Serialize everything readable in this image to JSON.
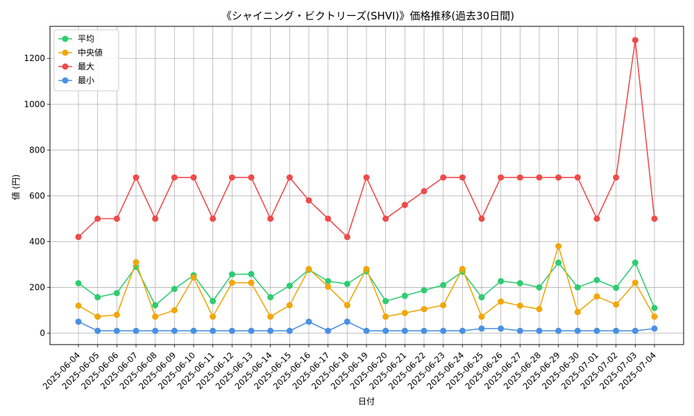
{
  "chart_data": {
    "type": "line",
    "title": "《シャイニング・ビクトリーズ(SHVI)》価格推移(過去30日間)",
    "xlabel": "日付",
    "ylabel": "値 (円)",
    "ylim": [
      -50,
      1340
    ],
    "yticks": [
      0,
      200,
      400,
      600,
      800,
      1000,
      1200
    ],
    "grid": true,
    "legend_position": "top-left",
    "categories": [
      "2025-06-04",
      "2025-06-05",
      "2025-06-06",
      "2025-06-07",
      "2025-06-08",
      "2025-06-09",
      "2025-06-10",
      "2025-06-11",
      "2025-06-12",
      "2025-06-13",
      "2025-06-14",
      "2025-06-15",
      "2025-06-16",
      "2025-06-17",
      "2025-06-18",
      "2025-06-19",
      "2025-06-20",
      "2025-06-21",
      "2025-06-22",
      "2025-06-23",
      "2025-06-24",
      "2025-06-25",
      "2025-06-26",
      "2025-06-27",
      "2025-06-28",
      "2025-06-29",
      "2025-06-30",
      "2025-07-01",
      "2025-07-02",
      "2025-07-03",
      "2025-07-04"
    ],
    "series": [
      {
        "name": "平均",
        "color": "#2ecc71",
        "values": [
          218,
          157,
          175,
          290,
          122,
          193,
          253,
          140,
          257,
          258,
          157,
          207,
          277,
          227,
          215,
          270,
          140,
          163,
          187,
          210,
          268,
          157,
          227,
          218,
          200,
          308,
          200,
          232,
          198,
          308,
          110
        ]
      },
      {
        "name": "中央値",
        "color": "#f1a60a",
        "values": [
          120,
          72,
          80,
          310,
          72,
          100,
          243,
          72,
          220,
          220,
          72,
          122,
          280,
          203,
          122,
          280,
          72,
          88,
          105,
          122,
          280,
          72,
          138,
          120,
          105,
          380,
          92,
          160,
          125,
          220,
          72
        ]
      },
      {
        "name": "最大",
        "color": "#ef4b4b",
        "values": [
          420,
          500,
          500,
          680,
          500,
          680,
          680,
          500,
          680,
          680,
          500,
          680,
          580,
          500,
          420,
          680,
          500,
          560,
          620,
          680,
          680,
          500,
          680,
          680,
          680,
          680,
          680,
          500,
          680,
          1280,
          500
        ]
      },
      {
        "name": "最小",
        "color": "#4a90e2",
        "values": [
          50,
          10,
          10,
          10,
          10,
          10,
          10,
          10,
          10,
          10,
          10,
          10,
          50,
          10,
          50,
          10,
          10,
          10,
          10,
          10,
          10,
          20,
          20,
          10,
          10,
          10,
          10,
          10,
          10,
          10,
          20
        ]
      }
    ]
  }
}
